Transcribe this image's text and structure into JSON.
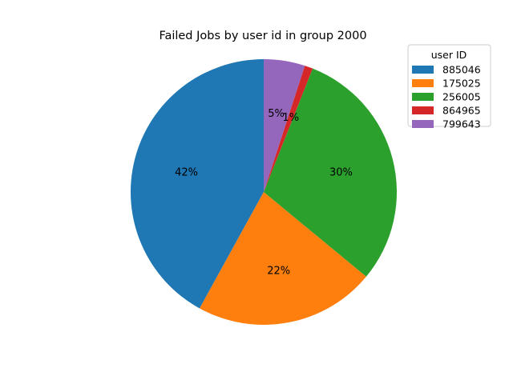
{
  "chart_data": {
    "type": "pie",
    "title": "Failed Jobs by user id in group 2000",
    "legend": {
      "title": "user ID",
      "placement": "top-right"
    },
    "start_angle_deg": 90,
    "direction": "counterclockwise",
    "slices": [
      {
        "label": "885046",
        "value": 42,
        "pct_label": "42%",
        "color": "#1f77b4"
      },
      {
        "label": "175025",
        "value": 22,
        "pct_label": "22%",
        "color": "#ff7f0e"
      },
      {
        "label": "256005",
        "value": 30,
        "pct_label": "30%",
        "color": "#2ca02c"
      },
      {
        "label": "864965",
        "value": 1,
        "pct_label": "1%",
        "color": "#d62728"
      },
      {
        "label": "799643",
        "value": 5,
        "pct_label": "5%",
        "color": "#9467bd"
      }
    ]
  }
}
